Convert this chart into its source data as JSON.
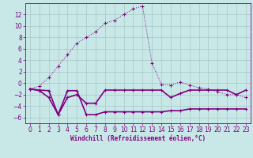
{
  "xlabel": "Windchill (Refroidissement éolien,°C)",
  "line1_y": [
    -1,
    -0.5,
    1,
    3,
    5,
    7,
    8,
    9,
    10.5,
    11,
    12,
    13,
    13.5,
    3.5,
    -0.2,
    -0.3,
    0.2,
    -0.3,
    -0.8,
    -1.0,
    -1.5,
    -2.0,
    -2.0,
    -2.5
  ],
  "line2_y": [
    -1,
    -1.3,
    -2.5,
    -5.5,
    -2.5,
    -2.0,
    -3.5,
    -3.5,
    -1.2,
    -1.2,
    -1.2,
    -1.2,
    -1.2,
    -1.2,
    -1.2,
    -2.5,
    -1.8,
    -1.2,
    -1.2,
    -1.2,
    -1.2,
    -1.2,
    -2.0,
    -1.2
  ],
  "line3_y": [
    -1,
    -1.2,
    -1.3,
    -5.5,
    -1.3,
    -1.3,
    -5.5,
    -5.5,
    -5.0,
    -5.0,
    -5.0,
    -5.0,
    -5.0,
    -5.0,
    -5.0,
    -4.8,
    -4.8,
    -4.5,
    -4.5,
    -4.5,
    -4.5,
    -4.5,
    -4.5,
    -4.5
  ],
  "x": [
    0,
    1,
    2,
    3,
    4,
    5,
    6,
    7,
    8,
    9,
    10,
    11,
    12,
    13,
    14,
    15,
    16,
    17,
    18,
    19,
    20,
    21,
    22,
    23
  ],
  "line_color": "#800080",
  "bg_color": "#c8e8e8",
  "grid_color": "#a8c8c8",
  "ylim": [
    -7,
    14
  ],
  "yticks": [
    -6,
    -4,
    -2,
    0,
    2,
    4,
    6,
    8,
    10,
    12
  ],
  "xticks": [
    0,
    1,
    2,
    3,
    4,
    5,
    6,
    7,
    8,
    9,
    10,
    11,
    12,
    13,
    14,
    15,
    16,
    17,
    18,
    19,
    20,
    21,
    22,
    23
  ],
  "tick_fontsize": 5.5,
  "xlabel_fontsize": 5.5
}
